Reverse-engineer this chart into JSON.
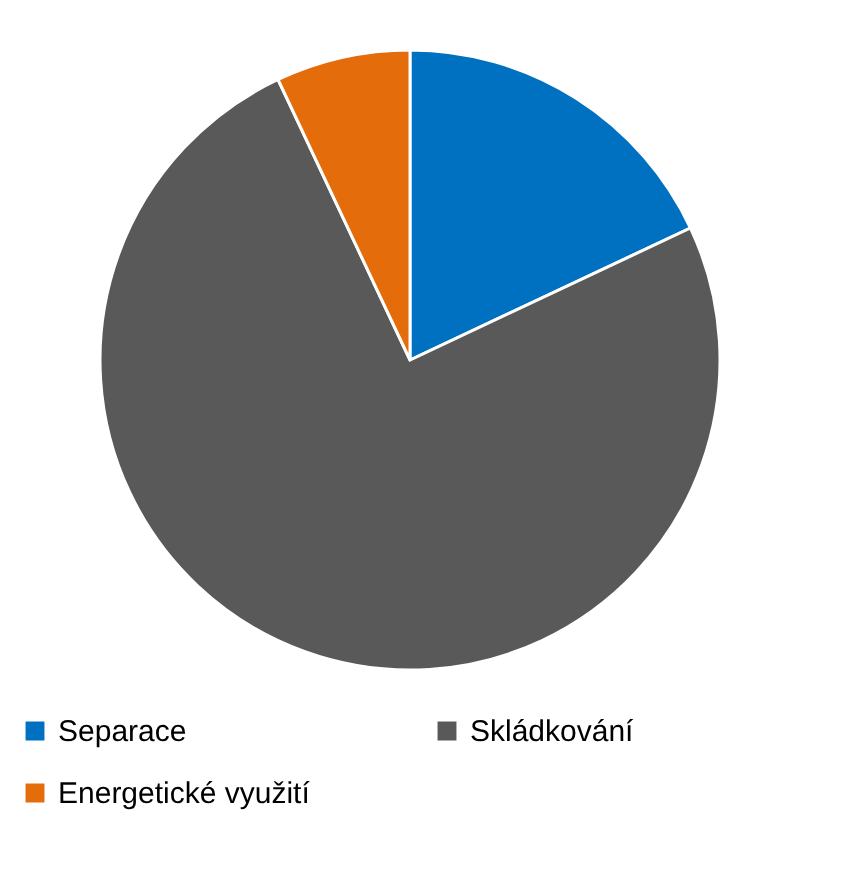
{
  "chart_data": {
    "type": "pie",
    "categories": [
      "Separace",
      "Skládkování",
      "Energetické využití"
    ],
    "values": [
      18,
      75,
      7
    ],
    "colors": [
      "#0070c0",
      "#595959",
      "#e46c0a"
    ],
    "legend": "bottom"
  }
}
